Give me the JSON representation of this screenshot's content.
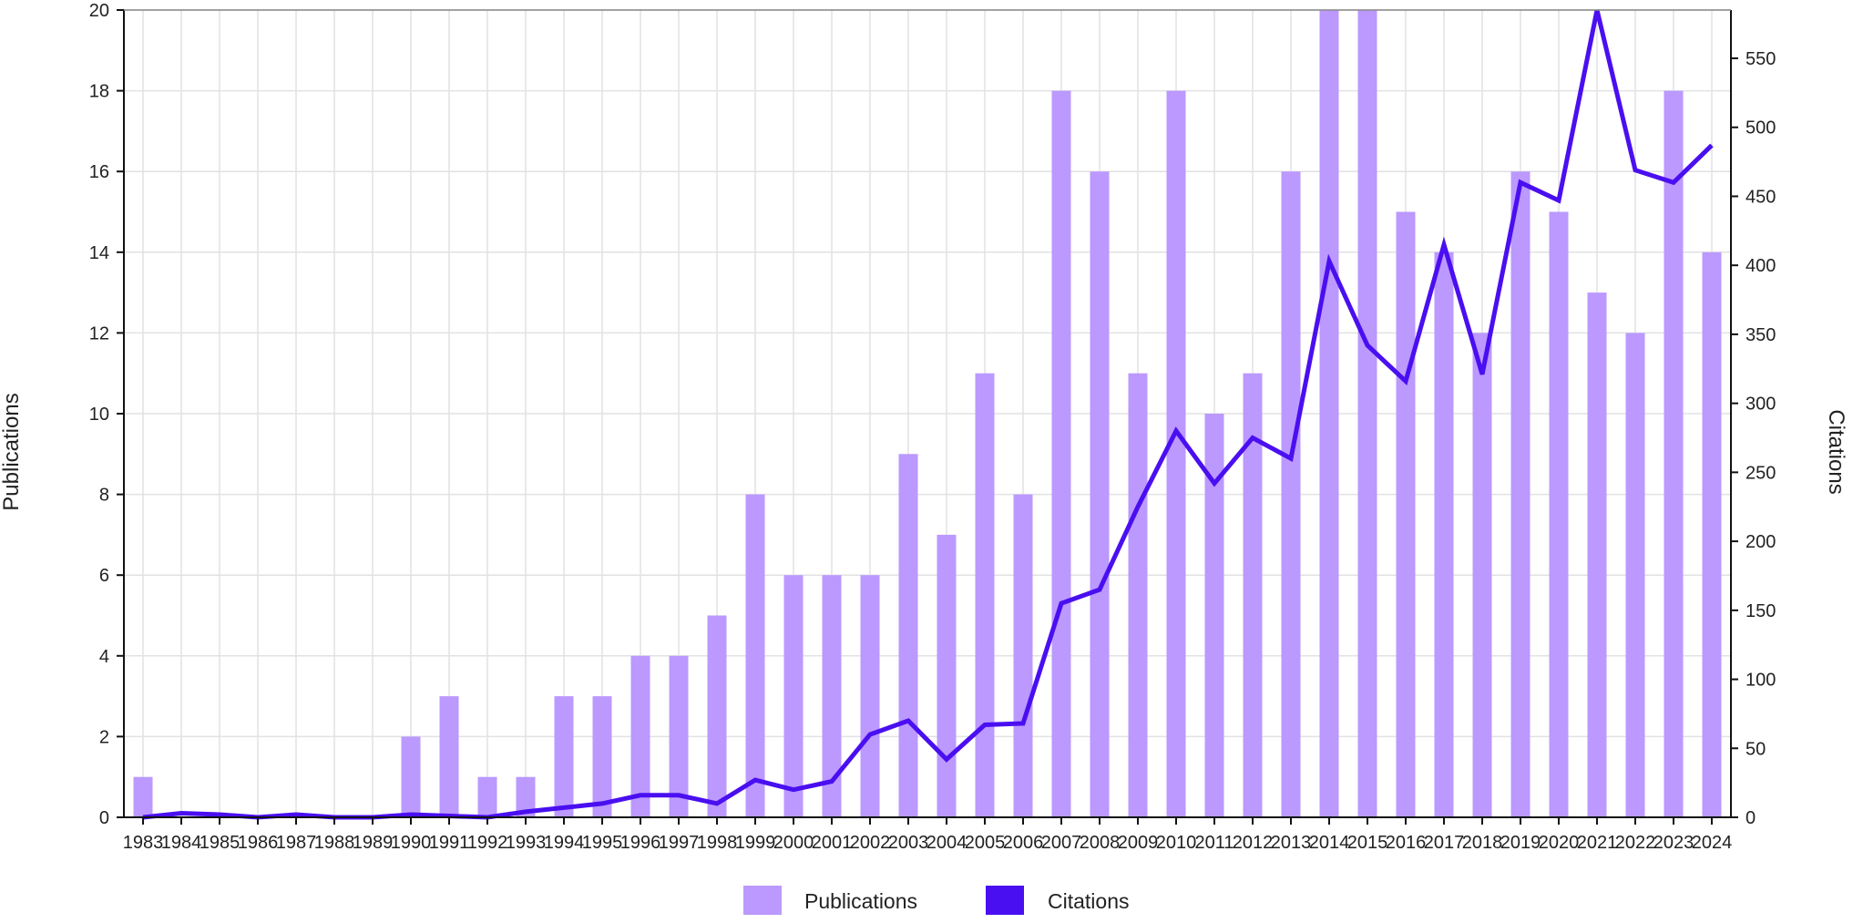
{
  "chart_data": {
    "type": "bar",
    "title": "",
    "x": [
      "1983",
      "1984",
      "1985",
      "1986",
      "1987",
      "1988",
      "1989",
      "1990",
      "1991",
      "1992",
      "1993",
      "1994",
      "1995",
      "1996",
      "1997",
      "1998",
      "1999",
      "2000",
      "2001",
      "2002",
      "2003",
      "2004",
      "2005",
      "2006",
      "2007",
      "2008",
      "2009",
      "2010",
      "2011",
      "2012",
      "2013",
      "2014",
      "2015",
      "2016",
      "2017",
      "2018",
      "2019",
      "2020",
      "2021",
      "2022",
      "2023",
      "2024"
    ],
    "series": [
      {
        "name": "Publications",
        "type": "bar",
        "axis": "left",
        "color": "#bb99ff",
        "values": [
          1,
          0,
          0,
          0,
          0,
          0,
          0,
          2,
          3,
          1,
          1,
          3,
          3,
          4,
          4,
          5,
          8,
          6,
          6,
          6,
          9,
          7,
          11,
          8,
          18,
          16,
          11,
          18,
          10,
          11,
          16,
          20,
          20,
          15,
          14,
          12,
          16,
          15,
          13,
          12,
          18,
          14
        ]
      },
      {
        "name": "Citations",
        "type": "line",
        "axis": "right",
        "color": "#4a0ff0",
        "values": [
          0,
          3,
          2,
          0,
          2,
          0,
          0,
          2,
          1,
          0,
          4,
          7,
          10,
          16,
          16,
          10,
          27,
          20,
          26,
          60,
          70,
          42,
          67,
          68,
          155,
          165,
          225,
          280,
          242,
          275,
          260,
          403,
          342,
          316,
          415,
          321,
          460,
          447,
          585,
          469,
          460,
          487
        ]
      }
    ],
    "y_left": {
      "label": "Publications",
      "ticks": [
        "0",
        "2",
        "4",
        "6",
        "8",
        "10",
        "12",
        "14",
        "16",
        "18",
        "20"
      ],
      "range": [
        0,
        20
      ]
    },
    "y_right": {
      "label": "Citations",
      "ticks": [
        "0",
        "50",
        "100",
        "150",
        "200",
        "250",
        "300",
        "350",
        "400",
        "450",
        "500",
        "550"
      ],
      "range": [
        0,
        585
      ]
    },
    "grid": true,
    "legend": {
      "position": "bottom-center",
      "items": [
        {
          "label": "Publications",
          "color": "#bb99ff"
        },
        {
          "label": "Citations",
          "color": "#4a0ff0"
        }
      ]
    }
  }
}
